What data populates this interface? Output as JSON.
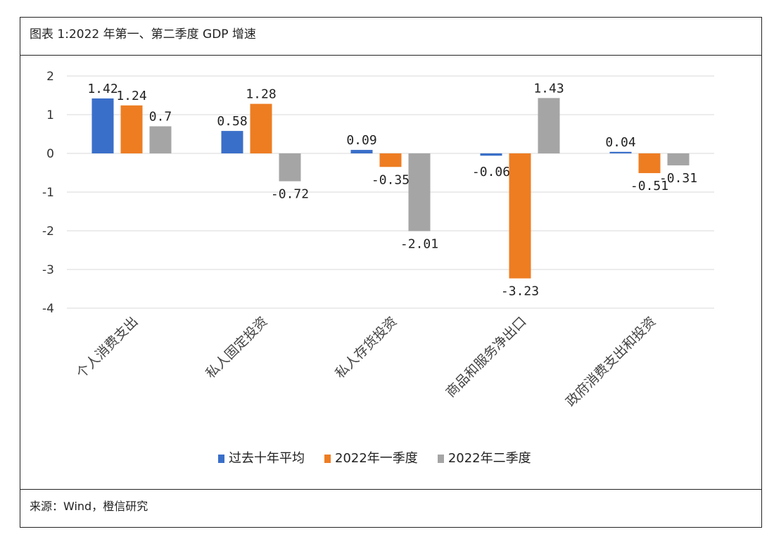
{
  "title": "图表 1:2022 年第一、第二季度 GDP 增速",
  "source": "来源：Wind，橙信研究",
  "chart_data": {
    "type": "bar",
    "categories": [
      "个人消费支出",
      "私人固定投资",
      "私人存货投资",
      "商品和服务净出口",
      "政府消费支出和投资"
    ],
    "series": [
      {
        "name": "过去十年平均",
        "color": "#3a6fc9",
        "values": [
          1.42,
          0.58,
          0.09,
          -0.06,
          0.04
        ]
      },
      {
        "name": "2022年一季度",
        "color": "#ee7d22",
        "values": [
          1.24,
          1.28,
          -0.35,
          -3.23,
          -0.51
        ]
      },
      {
        "name": "2022年二季度",
        "color": "#a5a5a5",
        "values": [
          0.7,
          -0.72,
          -2.01,
          1.43,
          -0.31
        ]
      }
    ],
    "ylim": [
      -4,
      2
    ],
    "yticks": [
      2,
      1,
      0,
      -1,
      -2,
      -3,
      -4
    ],
    "grid": true,
    "legend": "bottom"
  }
}
